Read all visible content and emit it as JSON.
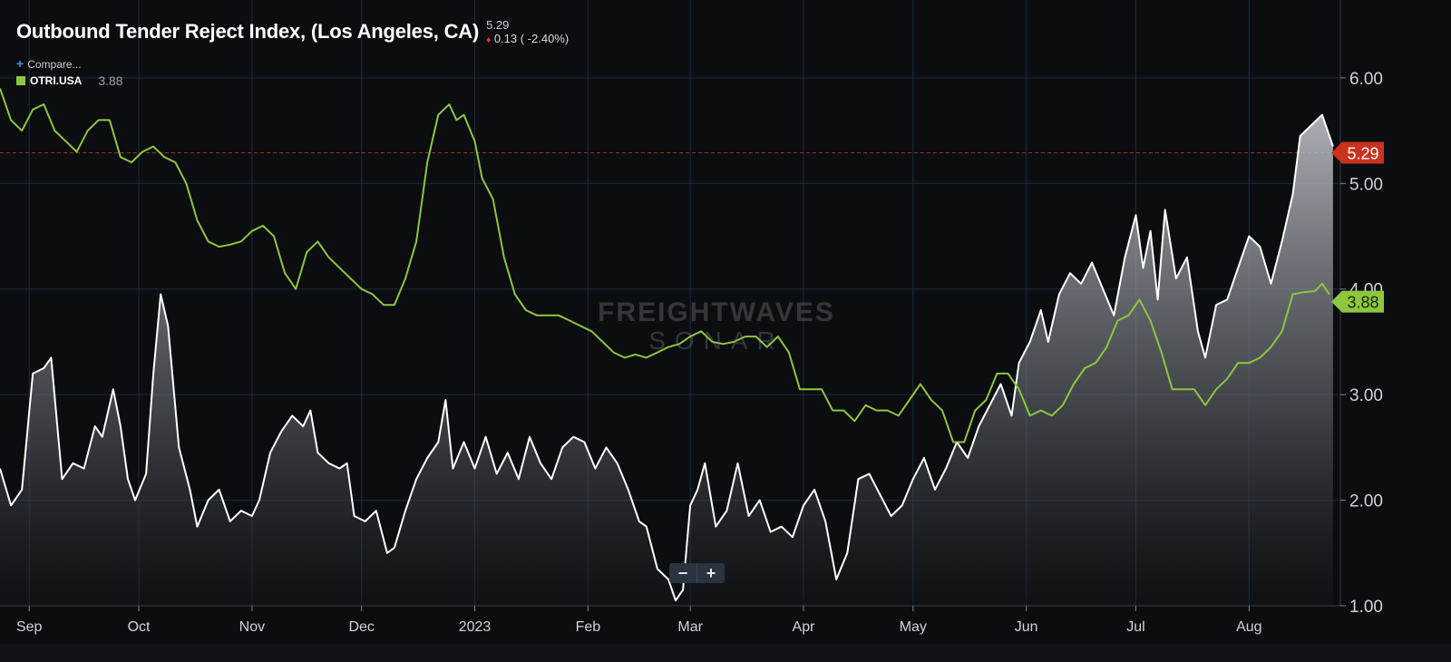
{
  "header": {
    "title": "Outbound Tender Reject Index, (Los Angeles, CA)",
    "last_value": "5.29",
    "change": "0.13 ( -2.40%)",
    "change_arrow": "♦"
  },
  "compare_label": "Compare...",
  "legend": {
    "series_name": "OTRI.USA",
    "series_value": "3.88",
    "color": "#8dc63f"
  },
  "watermark": {
    "main": "FREIGHTWAVES",
    "sub": "SONAR"
  },
  "zoom": {
    "minus": "−",
    "plus": "+"
  },
  "colors": {
    "primary": "#ffffff",
    "secondary": "#8dc63f",
    "last_badge": "#c8321e",
    "background": "#0b0d10"
  },
  "chart_data": {
    "type": "line",
    "x_start": "2022-08-24",
    "x_end": "2023-08-26",
    "ylim": [
      1.0,
      6.6
    ],
    "yticks": [
      1.0,
      2.0,
      3.0,
      4.0,
      5.0,
      6.0
    ],
    "ytick_labels": [
      "1.00",
      "2.00",
      "3.00",
      "4.00",
      "5.00",
      "6.00"
    ],
    "xticks": [
      {
        "date": "2022-09-01",
        "label": "Sep"
      },
      {
        "date": "2022-10-01",
        "label": "Oct"
      },
      {
        "date": "2022-11-01",
        "label": "Nov"
      },
      {
        "date": "2022-12-01",
        "label": "Dec"
      },
      {
        "date": "2023-01-01",
        "label": "2023"
      },
      {
        "date": "2023-02-01",
        "label": "Feb"
      },
      {
        "date": "2023-03-01",
        "label": "Mar"
      },
      {
        "date": "2023-04-01",
        "label": "Apr"
      },
      {
        "date": "2023-05-01",
        "label": "May"
      },
      {
        "date": "2023-06-01",
        "label": "Jun"
      },
      {
        "date": "2023-07-01",
        "label": "Jul"
      },
      {
        "date": "2023-08-01",
        "label": "Aug"
      }
    ],
    "grid": true,
    "series": [
      {
        "name": "",
        "color": "#ffffff",
        "filled": true,
        "last_label": "5.29",
        "points": [
          [
            "2022-08-24",
            2.3
          ],
          [
            "2022-08-27",
            1.95
          ],
          [
            "2022-08-30",
            2.1
          ],
          [
            "2022-09-02",
            3.2
          ],
          [
            "2022-09-05",
            3.25
          ],
          [
            "2022-09-07",
            3.35
          ],
          [
            "2022-09-10",
            2.2
          ],
          [
            "2022-09-13",
            2.35
          ],
          [
            "2022-09-16",
            2.3
          ],
          [
            "2022-09-19",
            2.7
          ],
          [
            "2022-09-21",
            2.6
          ],
          [
            "2022-09-24",
            3.05
          ],
          [
            "2022-09-26",
            2.7
          ],
          [
            "2022-09-28",
            2.2
          ],
          [
            "2022-09-30",
            2.0
          ],
          [
            "2022-10-03",
            2.25
          ],
          [
            "2022-10-05",
            3.2
          ],
          [
            "2022-10-07",
            3.95
          ],
          [
            "2022-10-09",
            3.65
          ],
          [
            "2022-10-12",
            2.5
          ],
          [
            "2022-10-15",
            2.1
          ],
          [
            "2022-10-17",
            1.75
          ],
          [
            "2022-10-20",
            2.0
          ],
          [
            "2022-10-23",
            2.1
          ],
          [
            "2022-10-26",
            1.8
          ],
          [
            "2022-10-29",
            1.9
          ],
          [
            "2022-11-01",
            1.85
          ],
          [
            "2022-11-03",
            2.0
          ],
          [
            "2022-11-06",
            2.45
          ],
          [
            "2022-11-09",
            2.65
          ],
          [
            "2022-11-12",
            2.8
          ],
          [
            "2022-11-15",
            2.7
          ],
          [
            "2022-11-17",
            2.85
          ],
          [
            "2022-11-19",
            2.45
          ],
          [
            "2022-11-22",
            2.35
          ],
          [
            "2022-11-25",
            2.3
          ],
          [
            "2022-11-27",
            2.35
          ],
          [
            "2022-11-29",
            1.85
          ],
          [
            "2022-12-02",
            1.8
          ],
          [
            "2022-12-05",
            1.9
          ],
          [
            "2022-12-08",
            1.5
          ],
          [
            "2022-12-10",
            1.55
          ],
          [
            "2022-12-13",
            1.9
          ],
          [
            "2022-12-16",
            2.2
          ],
          [
            "2022-12-19",
            2.4
          ],
          [
            "2022-12-22",
            2.55
          ],
          [
            "2022-12-24",
            2.95
          ],
          [
            "2022-12-26",
            2.3
          ],
          [
            "2022-12-29",
            2.55
          ],
          [
            "2023-01-01",
            2.3
          ],
          [
            "2023-01-04",
            2.6
          ],
          [
            "2023-01-07",
            2.25
          ],
          [
            "2023-01-10",
            2.45
          ],
          [
            "2023-01-13",
            2.2
          ],
          [
            "2023-01-16",
            2.6
          ],
          [
            "2023-01-19",
            2.35
          ],
          [
            "2023-01-22",
            2.2
          ],
          [
            "2023-01-25",
            2.5
          ],
          [
            "2023-01-28",
            2.6
          ],
          [
            "2023-01-31",
            2.55
          ],
          [
            "2023-02-03",
            2.3
          ],
          [
            "2023-02-06",
            2.5
          ],
          [
            "2023-02-09",
            2.35
          ],
          [
            "2023-02-12",
            2.1
          ],
          [
            "2023-02-15",
            1.8
          ],
          [
            "2023-02-17",
            1.75
          ],
          [
            "2023-02-20",
            1.35
          ],
          [
            "2023-02-23",
            1.25
          ],
          [
            "2023-02-25",
            1.05
          ],
          [
            "2023-02-27",
            1.15
          ],
          [
            "2023-03-01",
            1.95
          ],
          [
            "2023-03-03",
            2.1
          ],
          [
            "2023-03-05",
            2.35
          ],
          [
            "2023-03-08",
            1.75
          ],
          [
            "2023-03-11",
            1.9
          ],
          [
            "2023-03-14",
            2.35
          ],
          [
            "2023-03-17",
            1.85
          ],
          [
            "2023-03-20",
            2.0
          ],
          [
            "2023-03-23",
            1.7
          ],
          [
            "2023-03-26",
            1.75
          ],
          [
            "2023-03-29",
            1.65
          ],
          [
            "2023-04-01",
            1.95
          ],
          [
            "2023-04-04",
            2.1
          ],
          [
            "2023-04-07",
            1.8
          ],
          [
            "2023-04-10",
            1.25
          ],
          [
            "2023-04-13",
            1.5
          ],
          [
            "2023-04-16",
            2.2
          ],
          [
            "2023-04-19",
            2.25
          ],
          [
            "2023-04-22",
            2.05
          ],
          [
            "2023-04-25",
            1.85
          ],
          [
            "2023-04-28",
            1.95
          ],
          [
            "2023-05-01",
            2.2
          ],
          [
            "2023-05-04",
            2.4
          ],
          [
            "2023-05-07",
            2.1
          ],
          [
            "2023-05-10",
            2.3
          ],
          [
            "2023-05-13",
            2.55
          ],
          [
            "2023-05-16",
            2.4
          ],
          [
            "2023-05-19",
            2.7
          ],
          [
            "2023-05-22",
            2.9
          ],
          [
            "2023-05-25",
            3.1
          ],
          [
            "2023-05-28",
            2.8
          ],
          [
            "2023-05-30",
            3.3
          ],
          [
            "2023-06-02",
            3.5
          ],
          [
            "2023-06-05",
            3.8
          ],
          [
            "2023-06-07",
            3.5
          ],
          [
            "2023-06-10",
            3.95
          ],
          [
            "2023-06-13",
            4.15
          ],
          [
            "2023-06-16",
            4.05
          ],
          [
            "2023-06-19",
            4.25
          ],
          [
            "2023-06-22",
            4.0
          ],
          [
            "2023-06-25",
            3.75
          ],
          [
            "2023-06-28",
            4.3
          ],
          [
            "2023-07-01",
            4.7
          ],
          [
            "2023-07-03",
            4.2
          ],
          [
            "2023-07-05",
            4.55
          ],
          [
            "2023-07-07",
            3.9
          ],
          [
            "2023-07-09",
            4.75
          ],
          [
            "2023-07-12",
            4.1
          ],
          [
            "2023-07-15",
            4.3
          ],
          [
            "2023-07-18",
            3.6
          ],
          [
            "2023-07-20",
            3.35
          ],
          [
            "2023-07-23",
            3.85
          ],
          [
            "2023-07-26",
            3.9
          ],
          [
            "2023-07-29",
            4.2
          ],
          [
            "2023-08-01",
            4.5
          ],
          [
            "2023-08-04",
            4.4
          ],
          [
            "2023-08-07",
            4.05
          ],
          [
            "2023-08-10",
            4.45
          ],
          [
            "2023-08-13",
            4.9
          ],
          [
            "2023-08-15",
            5.45
          ],
          [
            "2023-08-18",
            5.55
          ],
          [
            "2023-08-21",
            5.65
          ],
          [
            "2023-08-24",
            5.35
          ]
        ]
      },
      {
        "name": "OTRI.USA",
        "color": "#8dc63f",
        "filled": false,
        "last_label": "3.88",
        "points": [
          [
            "2022-08-24",
            5.9
          ],
          [
            "2022-08-27",
            5.6
          ],
          [
            "2022-08-30",
            5.5
          ],
          [
            "2022-09-02",
            5.7
          ],
          [
            "2022-09-05",
            5.75
          ],
          [
            "2022-09-08",
            5.5
          ],
          [
            "2022-09-11",
            5.4
          ],
          [
            "2022-09-14",
            5.3
          ],
          [
            "2022-09-17",
            5.5
          ],
          [
            "2022-09-20",
            5.6
          ],
          [
            "2022-09-23",
            5.6
          ],
          [
            "2022-09-26",
            5.25
          ],
          [
            "2022-09-29",
            5.2
          ],
          [
            "2022-10-02",
            5.3
          ],
          [
            "2022-10-05",
            5.35
          ],
          [
            "2022-10-08",
            5.25
          ],
          [
            "2022-10-11",
            5.2
          ],
          [
            "2022-10-14",
            5.0
          ],
          [
            "2022-10-17",
            4.65
          ],
          [
            "2022-10-20",
            4.45
          ],
          [
            "2022-10-23",
            4.4
          ],
          [
            "2022-10-26",
            4.42
          ],
          [
            "2022-10-29",
            4.45
          ],
          [
            "2022-11-01",
            4.55
          ],
          [
            "2022-11-04",
            4.6
          ],
          [
            "2022-11-07",
            4.5
          ],
          [
            "2022-11-10",
            4.15
          ],
          [
            "2022-11-13",
            4.0
          ],
          [
            "2022-11-16",
            4.35
          ],
          [
            "2022-11-19",
            4.45
          ],
          [
            "2022-11-22",
            4.3
          ],
          [
            "2022-11-25",
            4.2
          ],
          [
            "2022-11-28",
            4.1
          ],
          [
            "2022-12-01",
            4.0
          ],
          [
            "2022-12-04",
            3.95
          ],
          [
            "2022-12-07",
            3.85
          ],
          [
            "2022-12-10",
            3.85
          ],
          [
            "2022-12-13",
            4.1
          ],
          [
            "2022-12-16",
            4.45
          ],
          [
            "2022-12-19",
            5.2
          ],
          [
            "2022-12-22",
            5.65
          ],
          [
            "2022-12-25",
            5.75
          ],
          [
            "2022-12-27",
            5.6
          ],
          [
            "2022-12-29",
            5.65
          ],
          [
            "2023-01-01",
            5.4
          ],
          [
            "2023-01-03",
            5.05
          ],
          [
            "2023-01-06",
            4.85
          ],
          [
            "2023-01-09",
            4.3
          ],
          [
            "2023-01-12",
            3.95
          ],
          [
            "2023-01-15",
            3.8
          ],
          [
            "2023-01-18",
            3.75
          ],
          [
            "2023-01-21",
            3.75
          ],
          [
            "2023-01-24",
            3.75
          ],
          [
            "2023-01-27",
            3.7
          ],
          [
            "2023-01-30",
            3.65
          ],
          [
            "2023-02-02",
            3.6
          ],
          [
            "2023-02-05",
            3.5
          ],
          [
            "2023-02-08",
            3.4
          ],
          [
            "2023-02-11",
            3.35
          ],
          [
            "2023-02-14",
            3.38
          ],
          [
            "2023-02-17",
            3.35
          ],
          [
            "2023-02-20",
            3.4
          ],
          [
            "2023-02-23",
            3.45
          ],
          [
            "2023-02-26",
            3.48
          ],
          [
            "2023-03-01",
            3.55
          ],
          [
            "2023-03-04",
            3.6
          ],
          [
            "2023-03-07",
            3.5
          ],
          [
            "2023-03-10",
            3.48
          ],
          [
            "2023-03-13",
            3.5
          ],
          [
            "2023-03-16",
            3.55
          ],
          [
            "2023-03-19",
            3.55
          ],
          [
            "2023-03-22",
            3.45
          ],
          [
            "2023-03-25",
            3.55
          ],
          [
            "2023-03-28",
            3.4
          ],
          [
            "2023-03-31",
            3.05
          ],
          [
            "2023-04-03",
            3.05
          ],
          [
            "2023-04-06",
            3.05
          ],
          [
            "2023-04-09",
            2.85
          ],
          [
            "2023-04-12",
            2.85
          ],
          [
            "2023-04-15",
            2.75
          ],
          [
            "2023-04-18",
            2.9
          ],
          [
            "2023-04-21",
            2.85
          ],
          [
            "2023-04-24",
            2.85
          ],
          [
            "2023-04-27",
            2.8
          ],
          [
            "2023-04-30",
            2.95
          ],
          [
            "2023-05-03",
            3.1
          ],
          [
            "2023-05-06",
            2.95
          ],
          [
            "2023-05-09",
            2.85
          ],
          [
            "2023-05-12",
            2.55
          ],
          [
            "2023-05-15",
            2.55
          ],
          [
            "2023-05-18",
            2.85
          ],
          [
            "2023-05-21",
            2.95
          ],
          [
            "2023-05-24",
            3.2
          ],
          [
            "2023-05-27",
            3.2
          ],
          [
            "2023-05-30",
            3.05
          ],
          [
            "2023-06-02",
            2.8
          ],
          [
            "2023-06-05",
            2.85
          ],
          [
            "2023-06-08",
            2.8
          ],
          [
            "2023-06-11",
            2.9
          ],
          [
            "2023-06-14",
            3.1
          ],
          [
            "2023-06-17",
            3.25
          ],
          [
            "2023-06-20",
            3.3
          ],
          [
            "2023-06-23",
            3.45
          ],
          [
            "2023-06-26",
            3.7
          ],
          [
            "2023-06-29",
            3.75
          ],
          [
            "2023-07-02",
            3.9
          ],
          [
            "2023-07-05",
            3.7
          ],
          [
            "2023-07-08",
            3.4
          ],
          [
            "2023-07-11",
            3.05
          ],
          [
            "2023-07-14",
            3.05
          ],
          [
            "2023-07-17",
            3.05
          ],
          [
            "2023-07-20",
            2.9
          ],
          [
            "2023-07-23",
            3.05
          ],
          [
            "2023-07-26",
            3.15
          ],
          [
            "2023-07-29",
            3.3
          ],
          [
            "2023-08-01",
            3.3
          ],
          [
            "2023-08-04",
            3.35
          ],
          [
            "2023-08-07",
            3.45
          ],
          [
            "2023-08-10",
            3.6
          ],
          [
            "2023-08-13",
            3.95
          ],
          [
            "2023-08-16",
            3.97
          ],
          [
            "2023-08-19",
            3.98
          ],
          [
            "2023-08-21",
            4.05
          ],
          [
            "2023-08-23",
            3.95
          ]
        ]
      }
    ],
    "reference_line": {
      "value": 5.29
    }
  }
}
